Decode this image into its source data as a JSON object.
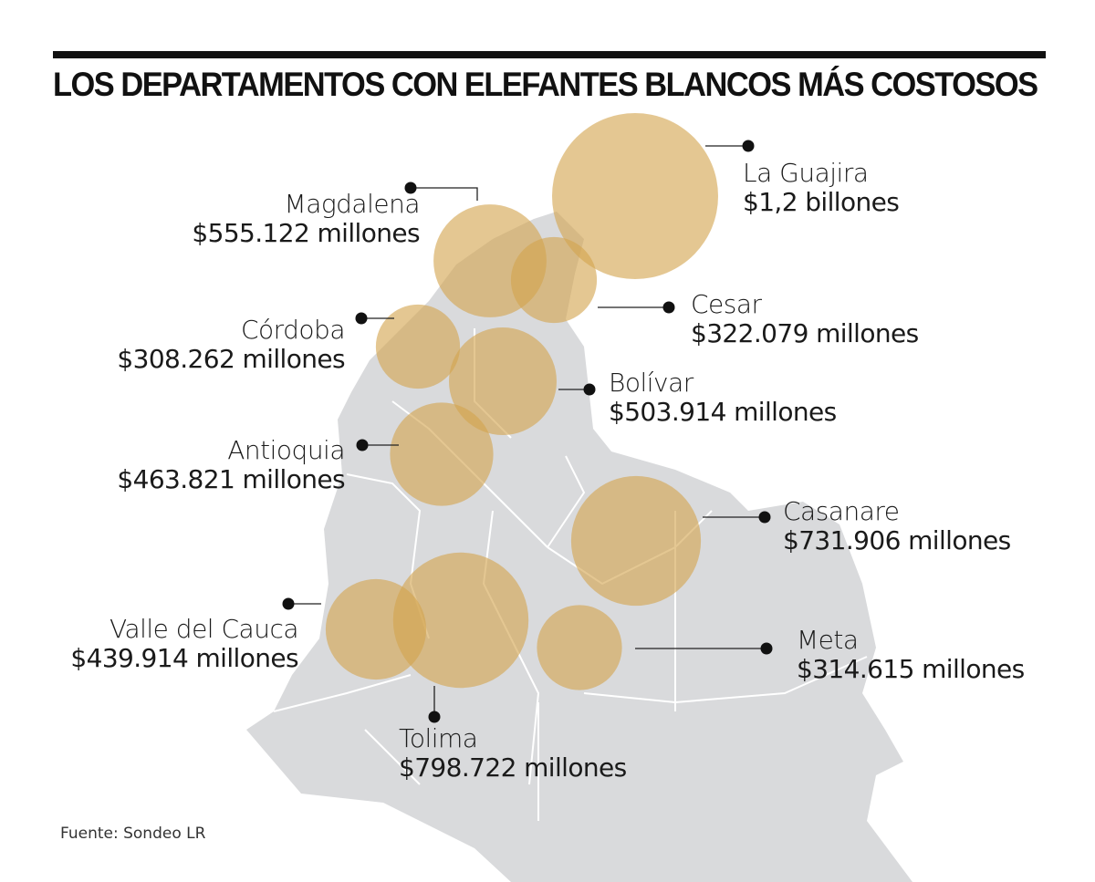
{
  "title": "LOS DEPARTAMENTOS CON ELEFANTES BLANCOS MÁS COSTOSOS",
  "source": "Fuente: Sondeo LR",
  "colors": {
    "bubble": "#d4a54f",
    "map": "#d9dadc",
    "border": "#ffffff",
    "text": "#1a1a1a"
  },
  "chart_data": {
    "type": "bubble-map",
    "unit": "millones de pesos",
    "items": [
      {
        "id": "la-guajira",
        "name": "La Guajira",
        "label": "$1,2 billones",
        "value": 1200000
      },
      {
        "id": "magdalena",
        "name": "Magdalena",
        "label": "$555.122 millones",
        "value": 555122
      },
      {
        "id": "cesar",
        "name": "Cesar",
        "label": "$322.079 millones",
        "value": 322079
      },
      {
        "id": "cordoba",
        "name": "Córdoba",
        "label": "$308.262 millones",
        "value": 308262
      },
      {
        "id": "bolivar",
        "name": "Bolívar",
        "label": "$503.914 millones",
        "value": 503914
      },
      {
        "id": "antioquia",
        "name": "Antioquia",
        "label": "$463.821 millones",
        "value": 463821
      },
      {
        "id": "casanare",
        "name": "Casanare",
        "label": "$731.906 millones",
        "value": 731906
      },
      {
        "id": "valle-del-cauca",
        "name": "Valle del Cauca",
        "label": "$439.914 millones",
        "value": 439914
      },
      {
        "id": "tolima",
        "name": "Tolima",
        "label": "$798.722 millones",
        "value": 798722
      },
      {
        "id": "meta",
        "name": "Meta",
        "label": "$314.615 millones",
        "value": 314615
      }
    ]
  }
}
